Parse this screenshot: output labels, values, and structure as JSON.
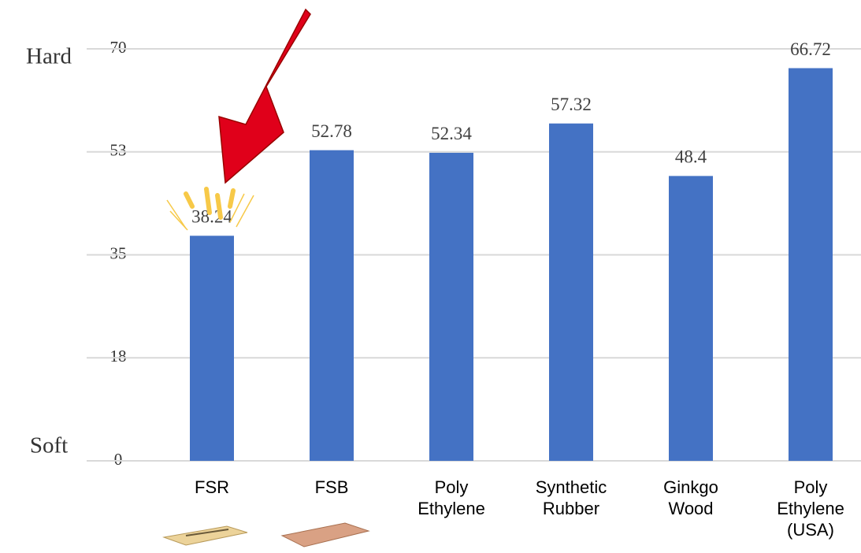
{
  "chart_data": {
    "type": "bar",
    "annotations": [
      "Hard",
      "Soft"
    ],
    "categories": [
      "FSR",
      "FSB",
      "Poly\nEthylene",
      "Synthetic\nRubber",
      "Ginkgo\nWood",
      "Poly\nEthylene\n(USA)"
    ],
    "values": [
      38.24,
      52.78,
      52.34,
      57.32,
      48.4,
      66.72
    ],
    "color": "#4472c4",
    "ylim": [
      0,
      70
    ],
    "yticks": [
      0,
      {
        "value": 17.5,
        "label": "18"
      },
      35,
      {
        "value": 52.5,
        "label": "53"
      },
      70
    ],
    "grid": true
  }
}
